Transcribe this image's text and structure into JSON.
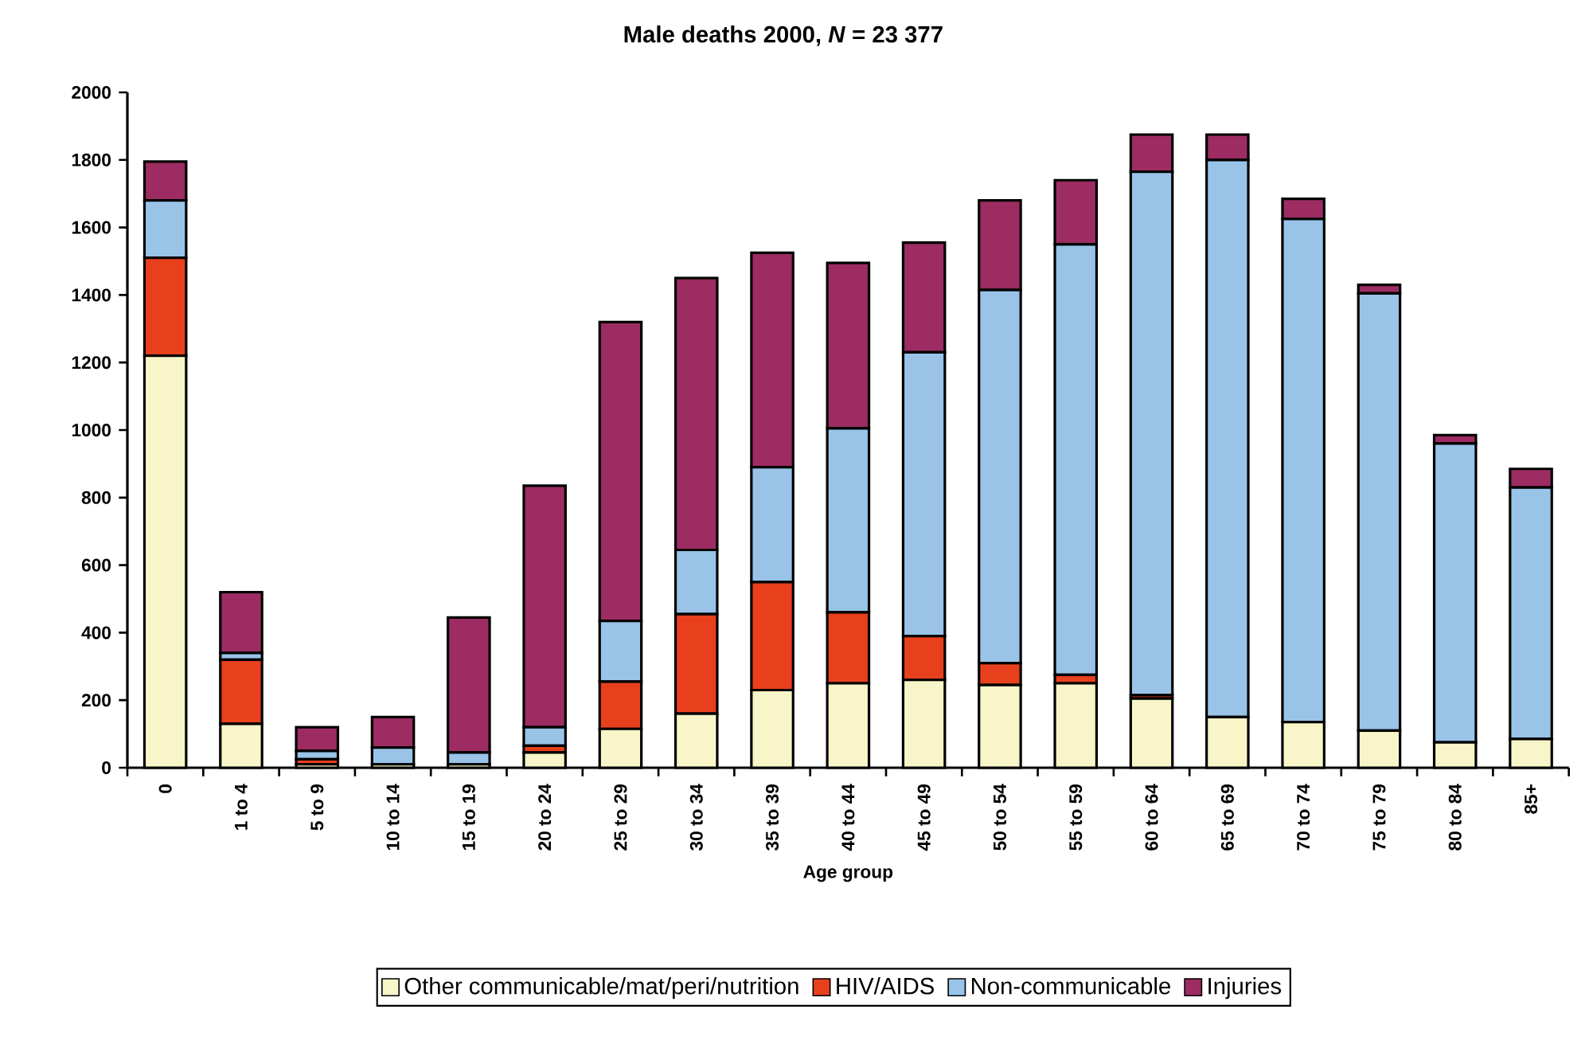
{
  "chart_data": {
    "type": "bar",
    "stacked": true,
    "title": "Male deaths 2000, *N* = 23 377",
    "xlabel": "Age group",
    "categories": [
      "0",
      "1 to 4",
      "5 to 9",
      "10 to 14",
      "15 to 19",
      "20 to 24",
      "25 to 29",
      "30 to 34",
      "35 to 39",
      "40 to 44",
      "45 to 49",
      "50 to 54",
      "55 to 59",
      "60 to 64",
      "65 to 69",
      "70 to 74",
      "75 to 79",
      "80 to 84",
      "85+"
    ],
    "series": [
      {
        "name": "Other communicable/mat/peri/nutrition",
        "color": "#f8f6c8",
        "values": [
          1220,
          130,
          10,
          10,
          10,
          45,
          115,
          160,
          230,
          250,
          260,
          245,
          250,
          205,
          150,
          135,
          110,
          75,
          85
        ]
      },
      {
        "name": "HIV/AIDS",
        "color": "#e8401c",
        "values": [
          290,
          190,
          15,
          null,
          null,
          20,
          140,
          295,
          320,
          210,
          130,
          65,
          25,
          10,
          null,
          null,
          null,
          null,
          null
        ]
      },
      {
        "name": "Non-communicable",
        "color": "#99c4e8",
        "values": [
          170,
          20,
          25,
          50,
          35,
          55,
          180,
          190,
          340,
          545,
          840,
          1105,
          1275,
          1550,
          1650,
          1490,
          1295,
          885,
          745
        ]
      },
      {
        "name": "Injuries",
        "color": "#9c2c62",
        "values": [
          115,
          180,
          70,
          90,
          400,
          715,
          885,
          805,
          635,
          490,
          325,
          265,
          190,
          110,
          75,
          60,
          25,
          25,
          55
        ]
      }
    ],
    "ylim": [
      0,
      2000
    ],
    "yticks": [
      0,
      200,
      400,
      600,
      800,
      1000,
      1200,
      1400,
      1600,
      1800,
      2000
    ],
    "legend": "bottom"
  }
}
